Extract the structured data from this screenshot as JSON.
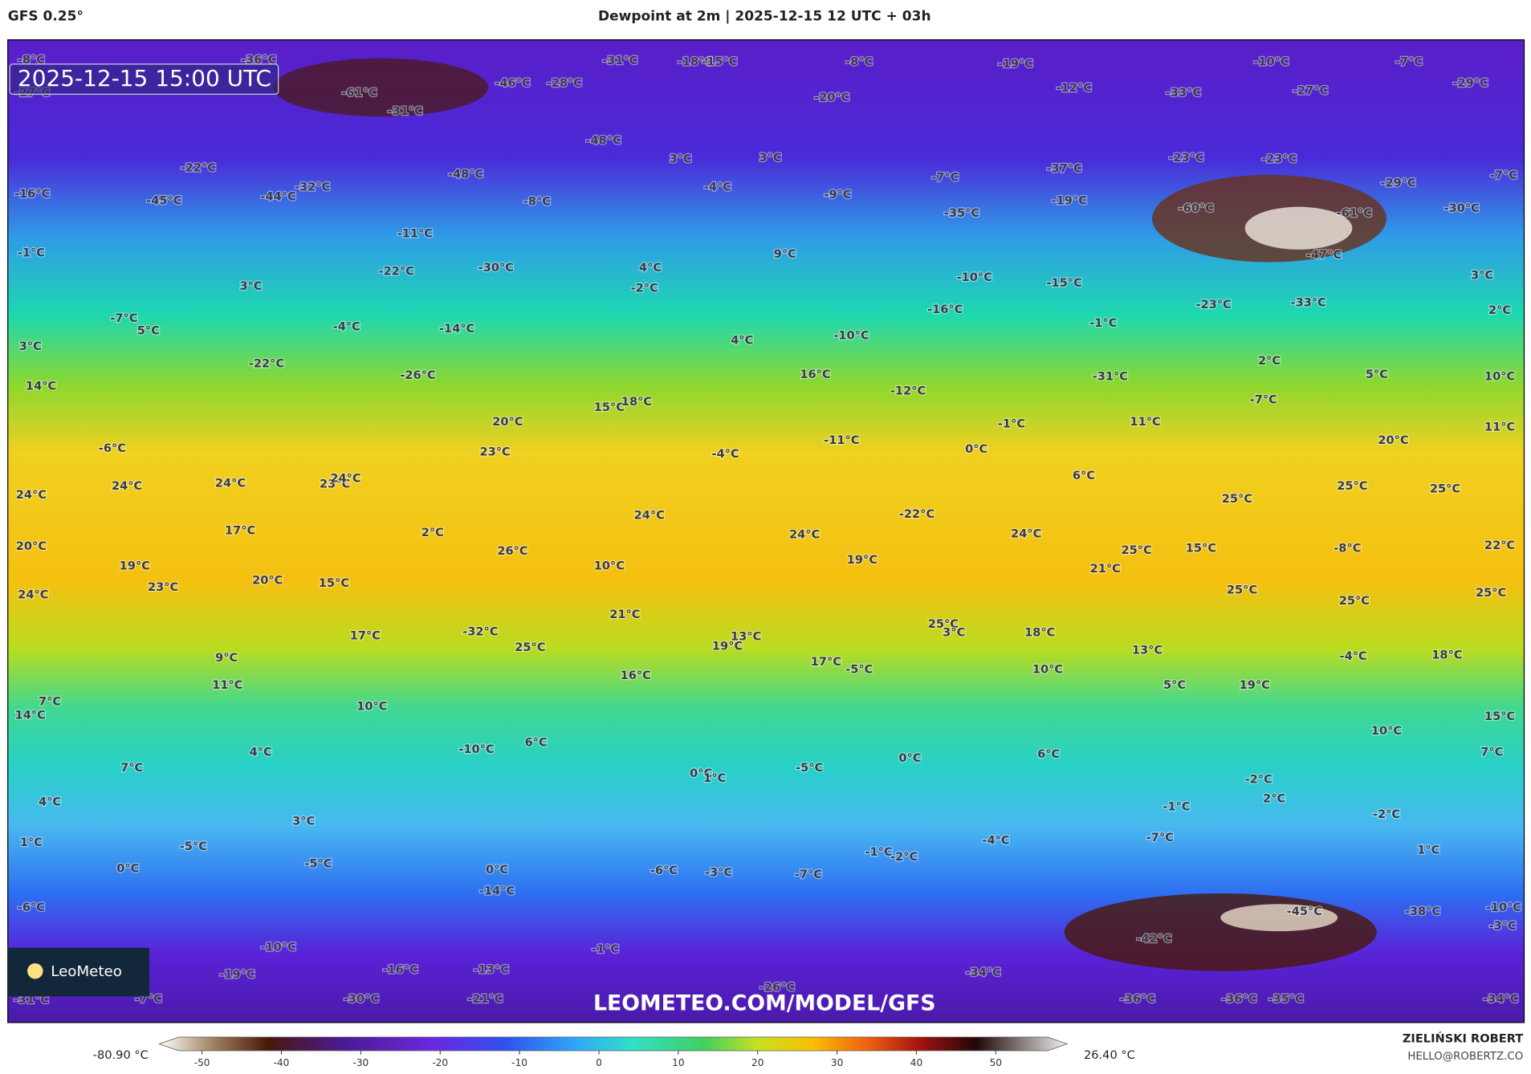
{
  "header": {
    "model": "GFS 0.25°",
    "title": "Dewpoint at 2m | 2025-12-15 12 UTC + 03h"
  },
  "map": {
    "timestamp": "2025-12-15 15:00 UTC",
    "watermark": "LEOMETEO.COM/MODEL/GFS",
    "logo": "LeoMeteo",
    "labels": [
      "-8°C",
      "-36°C",
      "-31°C",
      "-18°C",
      "-15°C",
      "-8°C",
      "-19°C",
      "-10°C",
      "-7°C",
      "-27°C",
      "-61°C",
      "-46°C",
      "-28°C",
      "-20°C",
      "-12°C",
      "-33°C",
      "-27°C",
      "-29°C",
      "-31°C",
      "-48°C",
      "3°C",
      "3°C",
      "-23°C",
      "-23°C",
      "-37°C",
      "-7°C",
      "-22°C",
      "-48°C",
      "-7°C",
      "-29°C",
      "-16°C",
      "-45°C",
      "-44°C",
      "-32°C",
      "-8°C",
      "-4°C",
      "-9°C",
      "-19°C",
      "-60°C",
      "-61°C",
      "-30°C",
      "-35°C",
      "-11°C",
      "-1°C",
      "9°C",
      "-47°C",
      "4°C",
      "-30°C",
      "-22°C",
      "-10°C",
      "-15°C",
      "3°C",
      "3°C",
      "-2°C",
      "-7°C",
      "5°C",
      "-4°C",
      "-14°C",
      "-16°C",
      "-23°C",
      "-33°C",
      "-1°C",
      "2°C",
      "3°C",
      "4°C",
      "-10°C",
      "-22°C",
      "-26°C",
      "16°C",
      "-31°C",
      "5°C",
      "10°C",
      "2°C",
      "14°C",
      "-12°C",
      "15°C",
      "18°C",
      "-7°C",
      "11°C",
      "-1°C",
      "20°C",
      "11°C",
      "-6°C",
      "23°C",
      "-11°C",
      "0°C",
      "20°C",
      "-4°C",
      "6°C",
      "24°C",
      "24°C",
      "24°C",
      "23°C",
      "24°C",
      "25°C",
      "25°C",
      "25°C",
      "24°C",
      "-22°C",
      "24°C",
      "17°C",
      "2°C",
      "24°C",
      "15°C",
      "-8°C",
      "25°C",
      "22°C",
      "20°C",
      "26°C",
      "19°C",
      "10°C",
      "21°C",
      "19°C",
      "23°C",
      "20°C",
      "15°C",
      "24°C",
      "25°C",
      "25°C",
      "25°C",
      "21°C",
      "-32°C",
      "25°C",
      "17°C",
      "13°C",
      "18°C",
      "25°C",
      "3°C",
      "19°C",
      "13°C",
      "-4°C",
      "18°C",
      "9°C",
      "17°C",
      "-5°C",
      "10°C",
      "16°C",
      "11°C",
      "5°C",
      "19°C",
      "7°C",
      "10°C",
      "14°C",
      "15°C",
      "10°C",
      "-10°C",
      "6°C",
      "4°C",
      "7°C",
      "0°C",
      "6°C",
      "7°C",
      "-5°C",
      "0°C",
      "1°C",
      "-2°C",
      "4°C",
      "2°C",
      "-1°C",
      "-2°C",
      "3°C",
      "-7°C",
      "-4°C",
      "1°C",
      "-5°C",
      "-1°C",
      "-2°C",
      "1°C",
      "-5°C",
      "0°C",
      "0°C",
      "-6°C",
      "-3°C",
      "-7°C",
      "-14°C",
      "-6°C",
      "-45°C",
      "-38°C",
      "-10°C",
      "-3°C",
      "-42°C",
      "-10°C",
      "-1°C",
      "-19°C",
      "-16°C",
      "-13°C",
      "-34°C",
      "-26°C",
      "-31°C",
      "-7°C",
      "-30°C",
      "-21°C",
      "-36°C",
      "-36°C",
      "-35°C",
      "-34°C"
    ]
  },
  "colorbar": {
    "min_label": "-80.90 °C",
    "max_label": "26.40 °C",
    "lim": [
      -55.4,
      59
    ],
    "ticks": [
      -50,
      -40,
      -30,
      -20,
      -10,
      0,
      10,
      20,
      30,
      40,
      50
    ]
  },
  "footer": {
    "author": "ZIELIŃSKI ROBERT",
    "email": "HELLO@ROBERTZ.CO"
  }
}
